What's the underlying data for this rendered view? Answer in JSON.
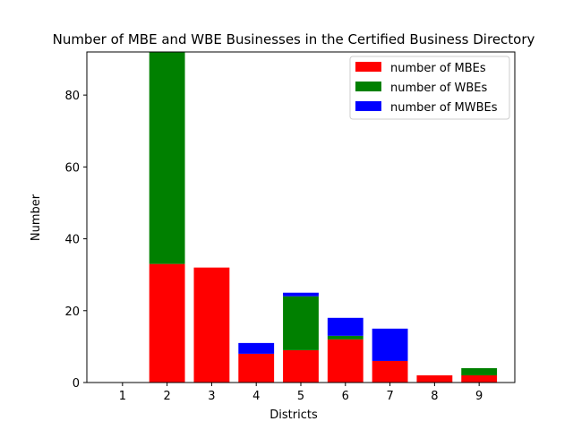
{
  "chart_data": {
    "type": "bar",
    "stacked": true,
    "title": "Number of MBE and WBE Businesses in the Certified Business Directory",
    "xlabel": "Districts",
    "ylabel": "Number",
    "categories": [
      "1",
      "2",
      "3",
      "4",
      "5",
      "6",
      "7",
      "8",
      "9"
    ],
    "ylim": [
      0,
      92
    ],
    "yticks": [
      "0",
      "20",
      "40",
      "60",
      "80"
    ],
    "legend_position": "top-right",
    "grid": false,
    "series": [
      {
        "name": "number of MBEs",
        "color": "#ff0000",
        "values": [
          0,
          33,
          32,
          8,
          9,
          12,
          6,
          2,
          2
        ]
      },
      {
        "name": "number of WBEs",
        "color": "#008000",
        "values": [
          0,
          59,
          0,
          0,
          15,
          1,
          0,
          0,
          2
        ]
      },
      {
        "name": "number of MWBEs",
        "color": "#0000ff",
        "values": [
          0,
          0,
          0,
          3,
          1,
          5,
          9,
          0,
          0
        ]
      }
    ]
  }
}
